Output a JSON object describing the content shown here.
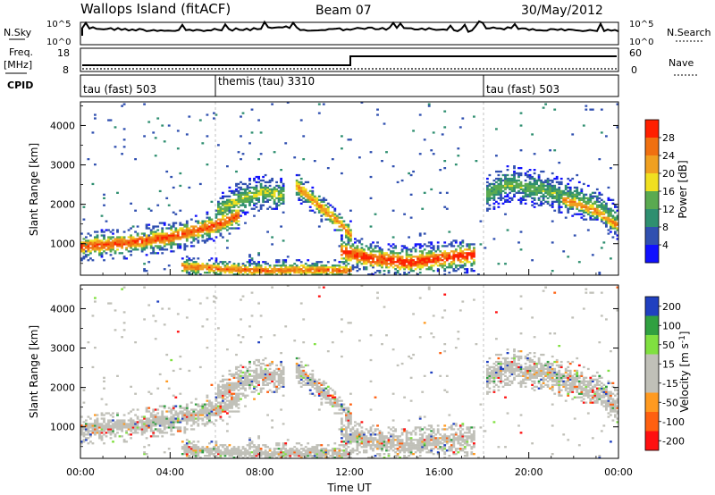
{
  "header": {
    "station": "Wallops Island (fitACF)",
    "beam": "Beam 07",
    "date": "30/May/2012"
  },
  "strip": {
    "nsky_label": "N.Sky",
    "nsky_ticks": [
      "10^5",
      "10^0"
    ],
    "nsearch_label": "N.Search",
    "nsearch_ticks": [
      "10^5",
      "10^0"
    ],
    "freq_label": "Freq.",
    "freq_unit": "[MHz]",
    "freq_ticks": [
      "18",
      "8"
    ],
    "nave_label": "Nave",
    "nave_ticks": [
      "60",
      "0"
    ],
    "cpid_label": "CPID",
    "cpid_segments": [
      {
        "label": "tau (fast) 503",
        "start": 0,
        "end": 6
      },
      {
        "label": "themis (tau) 3310",
        "start": 6,
        "end": 18
      },
      {
        "label": "tau (fast) 503",
        "start": 18,
        "end": 24
      }
    ]
  },
  "colors": {
    "power_scale": [
      "#1010ff",
      "#3050b0",
      "#2f8f70",
      "#5aaa50",
      "#f0e020",
      "#f0a020",
      "#f07010",
      "#ff2000"
    ],
    "velocity_scale": [
      "#ff1010",
      "#ff6010",
      "#ff9a20",
      "#c0c0b8",
      "#c0c0b8",
      "#80e040",
      "#30a040",
      "#2040c0"
    ]
  },
  "chart_data": [
    {
      "type": "heatmap",
      "name": "power",
      "ylabel": "Slant Range [km]",
      "xlabel": "Time UT",
      "xlim": [
        0,
        24
      ],
      "ylim": [
        200,
        4600
      ],
      "yticks": [
        "1000",
        "2000",
        "3000",
        "4000"
      ],
      "xticks": [
        "00:00",
        "04:00",
        "08:00",
        "12:00",
        "16:00",
        "20:00",
        "00:00"
      ],
      "colorbar_label": "Power [dB]",
      "colorbar_ticks": [
        "28",
        "24",
        "20",
        "16",
        "12",
        "8",
        "4"
      ],
      "colorbar_range": [
        0,
        32
      ],
      "bands": [
        {
          "t": [
            0,
            2,
            4,
            6,
            7
          ],
          "r": [
            900,
            1000,
            1150,
            1450,
            1700
          ],
          "w": 180,
          "v": 24
        },
        {
          "t": [
            6,
            7,
            8,
            9
          ],
          "r": [
            1800,
            2100,
            2300,
            2200
          ],
          "w": 200,
          "v": 12
        },
        {
          "t": [
            9.5,
            10.5,
            11.5,
            12
          ],
          "r": [
            2500,
            2000,
            1500,
            1200
          ],
          "w": 160,
          "v": 20
        },
        {
          "t": [
            11.5,
            13,
            14.5,
            16,
            17.5
          ],
          "r": [
            800,
            600,
            500,
            600,
            700
          ],
          "w": 200,
          "v": 26
        },
        {
          "t": [
            18,
            19,
            20,
            21,
            22,
            23,
            24
          ],
          "r": [
            2200,
            2500,
            2400,
            2300,
            2100,
            1900,
            1500
          ],
          "w": 220,
          "v": 10
        },
        {
          "t": [
            21.5,
            23,
            24
          ],
          "r": [
            2100,
            1800,
            1400
          ],
          "w": 140,
          "v": 20
        },
        {
          "t": [
            4.5,
            6,
            8,
            10,
            12
          ],
          "r": [
            400,
            350,
            300,
            320,
            300
          ],
          "w": 120,
          "v": 22
        }
      ]
    },
    {
      "type": "heatmap",
      "name": "velocity",
      "ylabel": "Slant Range [km]",
      "xlabel": "Time UT",
      "xlim": [
        0,
        24
      ],
      "ylim": [
        200,
        4600
      ],
      "yticks": [
        "1000",
        "2000",
        "3000",
        "4000"
      ],
      "xticks": [
        "00:00",
        "04:00",
        "08:00",
        "12:00",
        "16:00",
        "20:00",
        "00:00"
      ],
      "colorbar_label": "Velocity [m s^-1]",
      "colorbar_ticks": [
        "200",
        "100",
        "50",
        "15",
        "-15",
        "-50",
        "-100",
        "-200"
      ],
      "colorbar_range": [
        -250,
        250
      ]
    }
  ]
}
